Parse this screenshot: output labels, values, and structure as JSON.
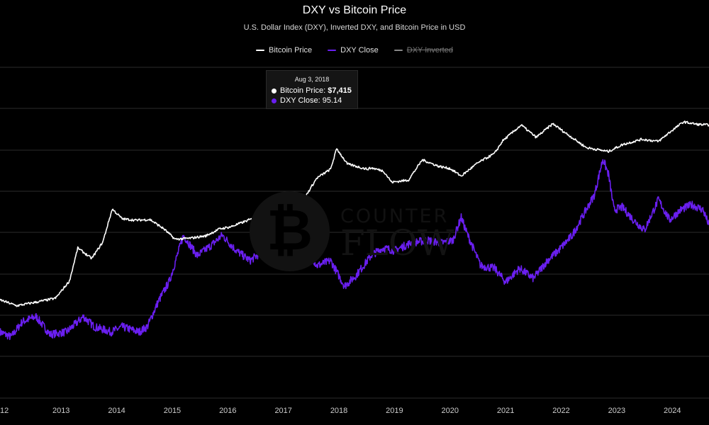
{
  "header": {
    "title": "DXY vs Bitcoin Price",
    "subtitle": "U.S. Dollar Index (DXY), Inverted DXY, and Bitcoin Price in USD"
  },
  "legend": [
    {
      "label": "Bitcoin Price",
      "color": "#ffffff",
      "visible": true
    },
    {
      "label": "DXY Close",
      "color": "#6a1ff0",
      "visible": true
    },
    {
      "label": "DXY Inverted",
      "color": "#888888",
      "visible": false
    }
  ],
  "tooltip": {
    "date": "Aug 3, 2018",
    "btc_label": "Bitcoin Price: ",
    "btc_value": "$7,415",
    "dxy_label": "DXY Close: ",
    "dxy_value": "95.14"
  },
  "watermark": {
    "line1": "COUNTER",
    "line2": "FLOW",
    "glyph": "₿"
  },
  "colors": {
    "background": "#000000",
    "grid": "#2b2b2b",
    "btc": "#ffffff",
    "dxy": "#6a1ff0",
    "axis_text": "#cccccc"
  },
  "chart_data": {
    "type": "line",
    "title": "DXY vs Bitcoin Price",
    "subtitle": "U.S. Dollar Index (DXY), Inverted DXY, and Bitcoin Price in USD",
    "x_ticks": [
      "2013",
      "2014",
      "2015",
      "2016",
      "2017",
      "2018",
      "2019",
      "2020",
      "2021",
      "2022",
      "2023",
      "2024"
    ],
    "x_tick_years": [
      2013,
      2014,
      2015,
      2016,
      2017,
      2018,
      2019,
      2020,
      2021,
      2022,
      2023,
      2024
    ],
    "x_first_label": "12",
    "xlim": [
      2011.9,
      2024.66
    ],
    "grid": true,
    "legend_position": "top-center",
    "series": [
      {
        "name": "Bitcoin Price",
        "axis": "log",
        "ylim": [
          0.1,
          1000000
        ],
        "points": [
          [
            2011.9,
            12
          ],
          [
            2012.2,
            9
          ],
          [
            2012.6,
            11
          ],
          [
            2012.9,
            13
          ],
          [
            2013.15,
            30
          ],
          [
            2013.3,
            150
          ],
          [
            2013.55,
            90
          ],
          [
            2013.75,
            200
          ],
          [
            2013.92,
            1000
          ],
          [
            2014.1,
            620
          ],
          [
            2014.35,
            580
          ],
          [
            2014.6,
            600
          ],
          [
            2014.85,
            380
          ],
          [
            2015.05,
            230
          ],
          [
            2015.3,
            240
          ],
          [
            2015.6,
            270
          ],
          [
            2015.85,
            380
          ],
          [
            2016.05,
            420
          ],
          [
            2016.4,
            600
          ],
          [
            2016.6,
            650
          ],
          [
            2016.85,
            730
          ],
          [
            2017.0,
            960
          ],
          [
            2017.3,
            1200
          ],
          [
            2017.6,
            4500
          ],
          [
            2017.85,
            7000
          ],
          [
            2017.96,
            19000
          ],
          [
            2018.15,
            9000
          ],
          [
            2018.5,
            7000
          ],
          [
            2018.59,
            7415
          ],
          [
            2018.8,
            6400
          ],
          [
            2018.95,
            3700
          ],
          [
            2019.25,
            4100
          ],
          [
            2019.5,
            11000
          ],
          [
            2019.8,
            8000
          ],
          [
            2020.0,
            7200
          ],
          [
            2020.2,
            5000
          ],
          [
            2020.5,
            9500
          ],
          [
            2020.8,
            15000
          ],
          [
            2020.95,
            28000
          ],
          [
            2021.28,
            60000
          ],
          [
            2021.55,
            33000
          ],
          [
            2021.85,
            64000
          ],
          [
            2022.05,
            43000
          ],
          [
            2022.45,
            20000
          ],
          [
            2022.85,
            16500
          ],
          [
            2023.1,
            23000
          ],
          [
            2023.45,
            30000
          ],
          [
            2023.75,
            27000
          ],
          [
            2023.95,
            42000
          ],
          [
            2024.2,
            70000
          ],
          [
            2024.45,
            62000
          ],
          [
            2024.66,
            60000
          ]
        ]
      },
      {
        "name": "DXY Close",
        "axis": "dxy",
        "ylim": [
          67,
          132
        ],
        "points": [
          [
            2011.9,
            80
          ],
          [
            2012.1,
            79
          ],
          [
            2012.3,
            82
          ],
          [
            2012.55,
            83
          ],
          [
            2012.8,
            79.5
          ],
          [
            2013.1,
            80
          ],
          [
            2013.4,
            83
          ],
          [
            2013.6,
            81
          ],
          [
            2013.9,
            80
          ],
          [
            2014.1,
            81
          ],
          [
            2014.4,
            80
          ],
          [
            2014.55,
            81
          ],
          [
            2014.75,
            86
          ],
          [
            2014.95,
            90
          ],
          [
            2015.2,
            99
          ],
          [
            2015.45,
            95
          ],
          [
            2015.7,
            97
          ],
          [
            2015.9,
            99
          ],
          [
            2016.15,
            96
          ],
          [
            2016.4,
            94
          ],
          [
            2016.65,
            96
          ],
          [
            2016.9,
            101
          ],
          [
            2017.05,
            103
          ],
          [
            2017.3,
            99
          ],
          [
            2017.6,
            93
          ],
          [
            2017.85,
            94
          ],
          [
            2018.1,
            89
          ],
          [
            2018.3,
            91
          ],
          [
            2018.59,
            95.14
          ],
          [
            2018.8,
            96.5
          ],
          [
            2019.0,
            96
          ],
          [
            2019.3,
            97.5
          ],
          [
            2019.6,
            98
          ],
          [
            2019.85,
            97.5
          ],
          [
            2020.05,
            98
          ],
          [
            2020.2,
            102.5
          ],
          [
            2020.3,
            99.5
          ],
          [
            2020.55,
            93
          ],
          [
            2020.8,
            92.5
          ],
          [
            2021.0,
            89.8
          ],
          [
            2021.25,
            92.5
          ],
          [
            2021.5,
            90.5
          ],
          [
            2021.75,
            94
          ],
          [
            2021.95,
            96
          ],
          [
            2022.2,
            99
          ],
          [
            2022.45,
            104
          ],
          [
            2022.6,
            107
          ],
          [
            2022.75,
            114
          ],
          [
            2022.85,
            111
          ],
          [
            2022.95,
            104
          ],
          [
            2023.1,
            104.5
          ],
          [
            2023.3,
            102
          ],
          [
            2023.5,
            100
          ],
          [
            2023.75,
            106
          ],
          [
            2023.95,
            102
          ],
          [
            2024.15,
            104
          ],
          [
            2024.35,
            105
          ],
          [
            2024.55,
            104
          ],
          [
            2024.66,
            101
          ]
        ]
      }
    ]
  }
}
